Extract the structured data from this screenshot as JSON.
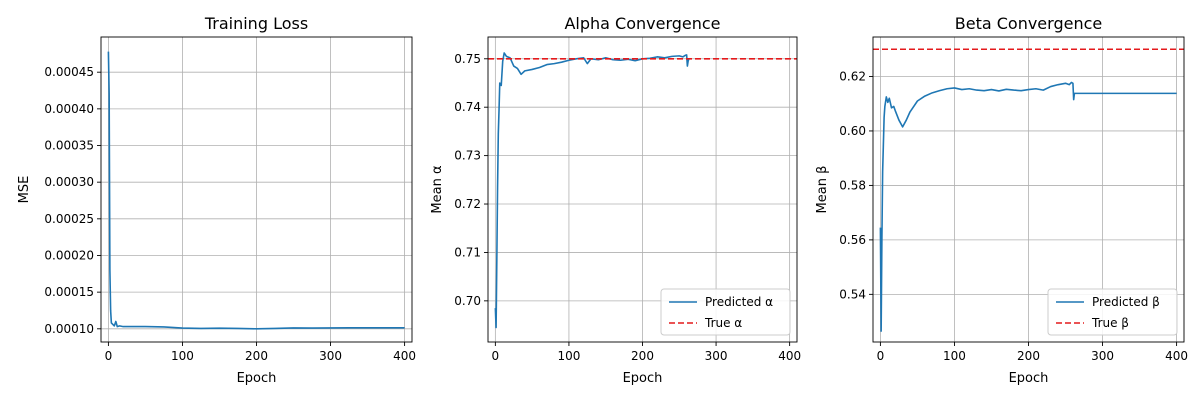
{
  "colors": {
    "series_blue": "#1f77b4",
    "reference_red": "#e41a1c",
    "grid": "#b0b0b0"
  },
  "chart_data": [
    {
      "type": "line",
      "title": "Training Loss",
      "xlabel": "Epoch",
      "ylabel": "MSE",
      "xlim": [
        -10,
        410
      ],
      "ylim": [
        8.2e-05,
        0.000498
      ],
      "xticks": [
        0,
        100,
        200,
        300,
        400
      ],
      "xtick_labels": [
        "0",
        "100",
        "200",
        "300",
        "400"
      ],
      "yticks": [
        0.0001,
        0.00015,
        0.0002,
        0.00025,
        0.0003,
        0.00035,
        0.0004,
        0.00045
      ],
      "ytick_labels": [
        "0.00010",
        "0.00015",
        "0.00020",
        "0.00025",
        "0.00030",
        "0.00035",
        "0.00040",
        "0.00045"
      ],
      "grid": true,
      "legend": null,
      "series": [
        {
          "color": "#1f77b4",
          "style": "solid",
          "x": [
            0,
            1,
            2,
            3,
            4,
            6,
            8,
            10,
            12,
            15,
            20,
            30,
            50,
            75,
            100,
            125,
            150,
            175,
            200,
            225,
            250,
            275,
            300,
            325,
            350,
            375,
            400
          ],
          "y": [
            0.000478,
            0.00042,
            0.00018,
            0.000125,
            0.000108,
            0.000106,
            0.000104,
            0.00011,
            0.000103,
            0.000104,
            0.000103,
            0.000103,
            0.000103,
            0.0001025,
            0.000101,
            0.0001005,
            0.0001008,
            0.0001005,
            0.0001,
            0.0001005,
            0.0001012,
            0.000101,
            0.0001012,
            0.0001013,
            0.0001013,
            0.0001013,
            0.0001013
          ]
        }
      ]
    },
    {
      "type": "line",
      "title": "Alpha Convergence",
      "xlabel": "Epoch",
      "ylabel": "Mean α",
      "xlim": [
        -10,
        410
      ],
      "ylim": [
        0.6915,
        0.7545
      ],
      "xticks": [
        0,
        100,
        200,
        300,
        400
      ],
      "xtick_labels": [
        "0",
        "100",
        "200",
        "300",
        "400"
      ],
      "yticks": [
        0.7,
        0.71,
        0.72,
        0.73,
        0.74,
        0.75
      ],
      "ytick_labels": [
        "0.70",
        "0.71",
        "0.72",
        "0.73",
        "0.74",
        "0.75"
      ],
      "grid": true,
      "legend": "lower-right",
      "series": [
        {
          "name": "Predicted α",
          "color": "#1f77b4",
          "style": "solid",
          "x": [
            0,
            1,
            2,
            3,
            4,
            5,
            6,
            8,
            10,
            12,
            15,
            20,
            25,
            30,
            35,
            40,
            50,
            60,
            70,
            80,
            90,
            100,
            110,
            120,
            125,
            130,
            140,
            150,
            160,
            170,
            180,
            190,
            200,
            210,
            220,
            230,
            240,
            250,
            255,
            258,
            260,
            261,
            262,
            263
          ],
          "y": [
            0.6985,
            0.6945,
            0.7085,
            0.7235,
            0.7345,
            0.7395,
            0.745,
            0.7445,
            0.7495,
            0.7512,
            0.7505,
            0.7502,
            0.7485,
            0.748,
            0.7468,
            0.7475,
            0.7478,
            0.7482,
            0.7488,
            0.749,
            0.7493,
            0.7497,
            0.75,
            0.7502,
            0.749,
            0.75,
            0.7498,
            0.7502,
            0.7498,
            0.7497,
            0.7499,
            0.7496,
            0.75,
            0.7501,
            0.7504,
            0.7502,
            0.7505,
            0.7506,
            0.7504,
            0.7507,
            0.7508,
            0.7485,
            0.7495,
            0.75
          ]
        },
        {
          "name": "True α",
          "color": "#e41a1c",
          "style": "dashed",
          "x": [
            -10,
            410
          ],
          "y": [
            0.75,
            0.75
          ]
        }
      ]
    },
    {
      "type": "line",
      "title": "Beta Convergence",
      "xlabel": "Epoch",
      "ylabel": "Mean β",
      "xlim": [
        -10,
        410
      ],
      "ylim": [
        0.5225,
        0.6345
      ],
      "xticks": [
        0,
        100,
        200,
        300,
        400
      ],
      "xtick_labels": [
        "0",
        "100",
        "200",
        "300",
        "400"
      ],
      "yticks": [
        0.54,
        0.56,
        0.58,
        0.6,
        0.62
      ],
      "ytick_labels": [
        "0.54",
        "0.56",
        "0.58",
        "0.60",
        "0.62"
      ],
      "grid": true,
      "legend": "lower-right",
      "series": [
        {
          "name": "Predicted β",
          "color": "#1f77b4",
          "style": "solid",
          "x": [
            0,
            1,
            2,
            3,
            4,
            5,
            6,
            8,
            10,
            12,
            15,
            18,
            20,
            25,
            30,
            35,
            40,
            50,
            60,
            70,
            80,
            90,
            100,
            110,
            120,
            130,
            140,
            150,
            160,
            170,
            180,
            190,
            200,
            210,
            220,
            230,
            240,
            250,
            255,
            258,
            260,
            261,
            262,
            263,
            270,
            300,
            350,
            400
          ],
          "y": [
            0.5645,
            0.5265,
            0.56,
            0.585,
            0.595,
            0.605,
            0.609,
            0.6125,
            0.6105,
            0.612,
            0.6085,
            0.609,
            0.6075,
            0.604,
            0.6015,
            0.604,
            0.607,
            0.611,
            0.6128,
            0.614,
            0.6148,
            0.6155,
            0.6158,
            0.6152,
            0.6155,
            0.615,
            0.6148,
            0.6152,
            0.6147,
            0.6153,
            0.615,
            0.6148,
            0.6152,
            0.6155,
            0.615,
            0.6163,
            0.617,
            0.6175,
            0.617,
            0.6178,
            0.6175,
            0.6115,
            0.6138,
            0.6138,
            0.6138,
            0.6138,
            0.6138,
            0.6138
          ]
        },
        {
          "name": "True β",
          "color": "#e41a1c",
          "style": "dashed",
          "x": [
            -10,
            410
          ],
          "y": [
            0.63,
            0.63
          ]
        }
      ]
    }
  ]
}
